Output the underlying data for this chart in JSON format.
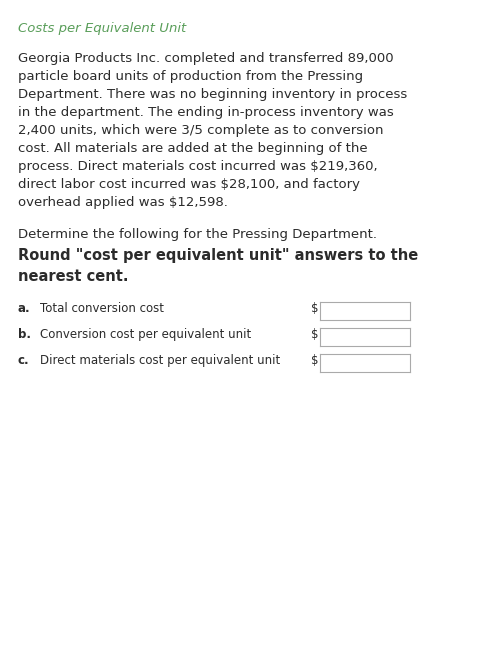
{
  "title": "Costs per Equivalent Unit",
  "title_color": "#5a9e5a",
  "background_color": "#ffffff",
  "body_text_color": "#2b2b2b",
  "paragraph1_lines": [
    "Georgia Products Inc. completed and transferred 89,000",
    "particle board units of production from the Pressing",
    "Department. There was no beginning inventory in process",
    "in the department. The ending in-process inventory was",
    "2,400 units, which were 3/5 complete as to conversion",
    "cost. All materials are added at the beginning of the",
    "process. Direct materials cost incurred was $219,360,",
    "direct labor cost incurred was $28,100, and factory",
    "overhead applied was $12,598."
  ],
  "paragraph2_normal": "Determine the following for the Pressing Department.",
  "paragraph2_bold_line1": "Round \"cost per equivalent unit\" answers to the",
  "paragraph2_bold_line2": "nearest cent.",
  "items": [
    {
      "label": "a.",
      "desc": "Total conversion cost"
    },
    {
      "label": "b.",
      "desc": "Conversion cost per equivalent unit"
    },
    {
      "label": "c.",
      "desc": "Direct materials cost per equivalent unit"
    }
  ],
  "box_color": "#ffffff",
  "box_edge_color": "#aaaaaa",
  "dollar_sign": "$",
  "title_fontsize": 9.5,
  "body_fontsize": 9.5,
  "bold_fontsize": 10.5,
  "item_fontsize": 8.5
}
